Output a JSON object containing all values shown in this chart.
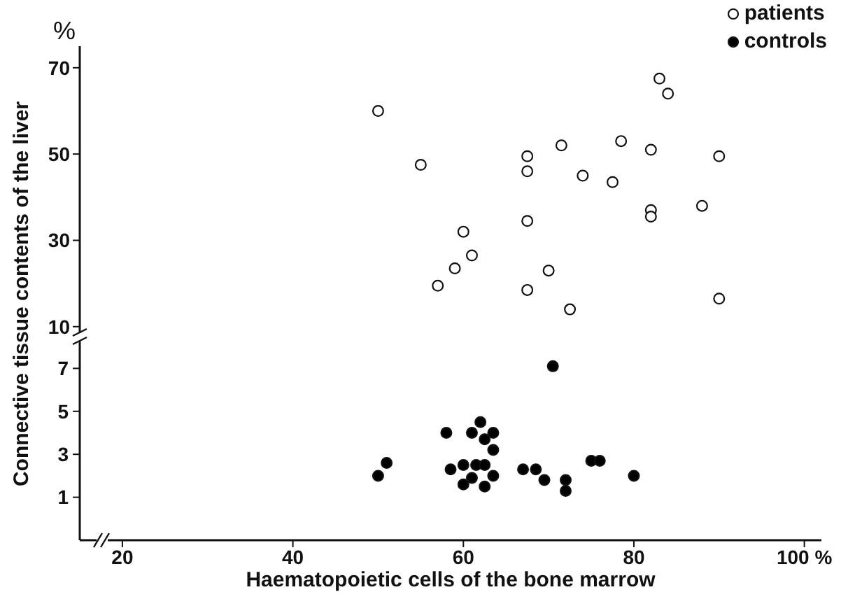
{
  "chart_data": {
    "type": "scatter",
    "xlabel": "Haematopoietic cells of the bone marrow",
    "ylabel": "Connective tissue contents of the liver",
    "annotations": [
      "%"
    ],
    "xlim": [
      15,
      102
    ],
    "xticks": [
      20,
      40,
      60,
      80,
      {
        "value": 100,
        "label": "100 %"
      }
    ],
    "ylim": [
      -39.5,
      75
    ],
    "yticks": [
      10,
      30,
      50,
      70
    ],
    "y2lim": [
      -1,
      22
    ],
    "y2ticks": [
      1,
      3,
      5,
      7
    ],
    "legend": "top right",
    "marker": "circle",
    "grid": false,
    "series": [
      {
        "name": "patients",
        "color": "#ffffff",
        "x": [
          50,
          55,
          57,
          59,
          60,
          61,
          67.5,
          67.5,
          67.5,
          67.5,
          70,
          71.5,
          72.5,
          74,
          77.5,
          78.5,
          82,
          82,
          82,
          83,
          84,
          88,
          90,
          90
        ],
        "values": [
          60,
          47.5,
          19.5,
          23.5,
          32,
          26.5,
          49.5,
          46,
          34.5,
          18.5,
          23,
          52,
          14,
          45,
          43.5,
          53,
          51,
          37,
          35.5,
          67.5,
          64,
          38,
          49.5,
          16.5
        ]
      },
      {
        "name": "controls",
        "color": "#000000",
        "axis": "y2",
        "x": [
          50,
          51,
          58,
          58.5,
          60,
          60,
          61,
          61,
          61.5,
          62,
          62.5,
          62.5,
          62.5,
          63.5,
          63.5,
          63.5,
          67,
          68.5,
          69.5,
          70.5,
          72,
          72,
          75,
          76,
          80
        ],
        "values": [
          2,
          2.6,
          4,
          2.3,
          2.5,
          1.6,
          4,
          1.9,
          2.5,
          4.5,
          3.7,
          2.5,
          1.5,
          4,
          3.2,
          2,
          2.3,
          2.3,
          1.8,
          7.1,
          1.8,
          1.3,
          2.7,
          2.7,
          2
        ]
      }
    ]
  }
}
